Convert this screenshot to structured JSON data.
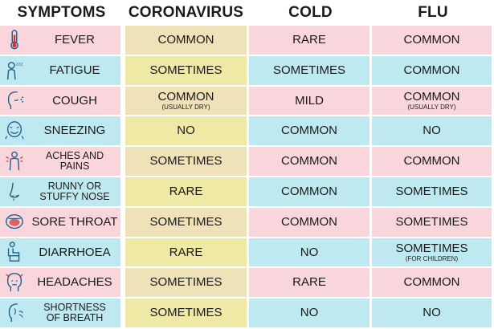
{
  "headers": [
    "SYMPTOMS",
    "CORONAVIRUS",
    "COLD",
    "FLU"
  ],
  "rows": [
    {
      "symptom": "FEVER",
      "icon": "thermometer-icon",
      "coronavirus": "COMMON",
      "coronavirus_note": "",
      "cold": "RARE",
      "flu": "COMMON",
      "flu_note": ""
    },
    {
      "symptom": "FATIGUE",
      "icon": "sleepy-person-icon",
      "coronavirus": "SOMETIMES",
      "coronavirus_note": "",
      "cold": "SOMETIMES",
      "flu": "COMMON",
      "flu_note": ""
    },
    {
      "symptom": "COUGH",
      "icon": "coughing-face-icon",
      "coronavirus": "COMMON",
      "coronavirus_note": "(USUALLY DRY)",
      "cold": "MILD",
      "flu": "COMMON",
      "flu_note": "(USUALLY DRY)"
    },
    {
      "symptom": "SNEEZING",
      "icon": "sneezing-face-icon",
      "coronavirus": "NO",
      "coronavirus_note": "",
      "cold": "COMMON",
      "flu": "NO",
      "flu_note": ""
    },
    {
      "symptom": "ACHES AND\nPAINS",
      "icon": "body-aches-icon",
      "coronavirus": "SOMETIMES",
      "coronavirus_note": "",
      "cold": "COMMON",
      "flu": "COMMON",
      "flu_note": ""
    },
    {
      "symptom": "RUNNY OR\nSTUFFY NOSE",
      "icon": "nose-icon",
      "coronavirus": "RARE",
      "coronavirus_note": "",
      "cold": "COMMON",
      "flu": "SOMETIMES",
      "flu_note": ""
    },
    {
      "symptom": "SORE THROAT",
      "icon": "open-mouth-icon",
      "coronavirus": "SOMETIMES",
      "coronavirus_note": "",
      "cold": "COMMON",
      "flu": "SOMETIMES",
      "flu_note": ""
    },
    {
      "symptom": "DIARRHOEA",
      "icon": "toilet-icon",
      "coronavirus": "RARE",
      "coronavirus_note": "",
      "cold": "NO",
      "flu": "SOMETIMES",
      "flu_note": "(FOR CHILDREN)"
    },
    {
      "symptom": "HEADACHES",
      "icon": "headache-icon",
      "coronavirus": "SOMETIMES",
      "coronavirus_note": "",
      "cold": "RARE",
      "flu": "COMMON",
      "flu_note": ""
    },
    {
      "symptom": "SHORTNESS\nOF BREATH",
      "icon": "breathing-face-icon",
      "coronavirus": "SOMETIMES",
      "coronavirus_note": "",
      "cold": "NO",
      "flu": "NO",
      "flu_note": ""
    }
  ],
  "colors": {
    "pink_row": "#f9d6dc",
    "blue_row": "#bfe9f1",
    "coronavirus_on_pink": "#efe1b8",
    "coronavirus_on_blue": "#eeeaa6",
    "icon_stroke": "#1f5f8b"
  }
}
